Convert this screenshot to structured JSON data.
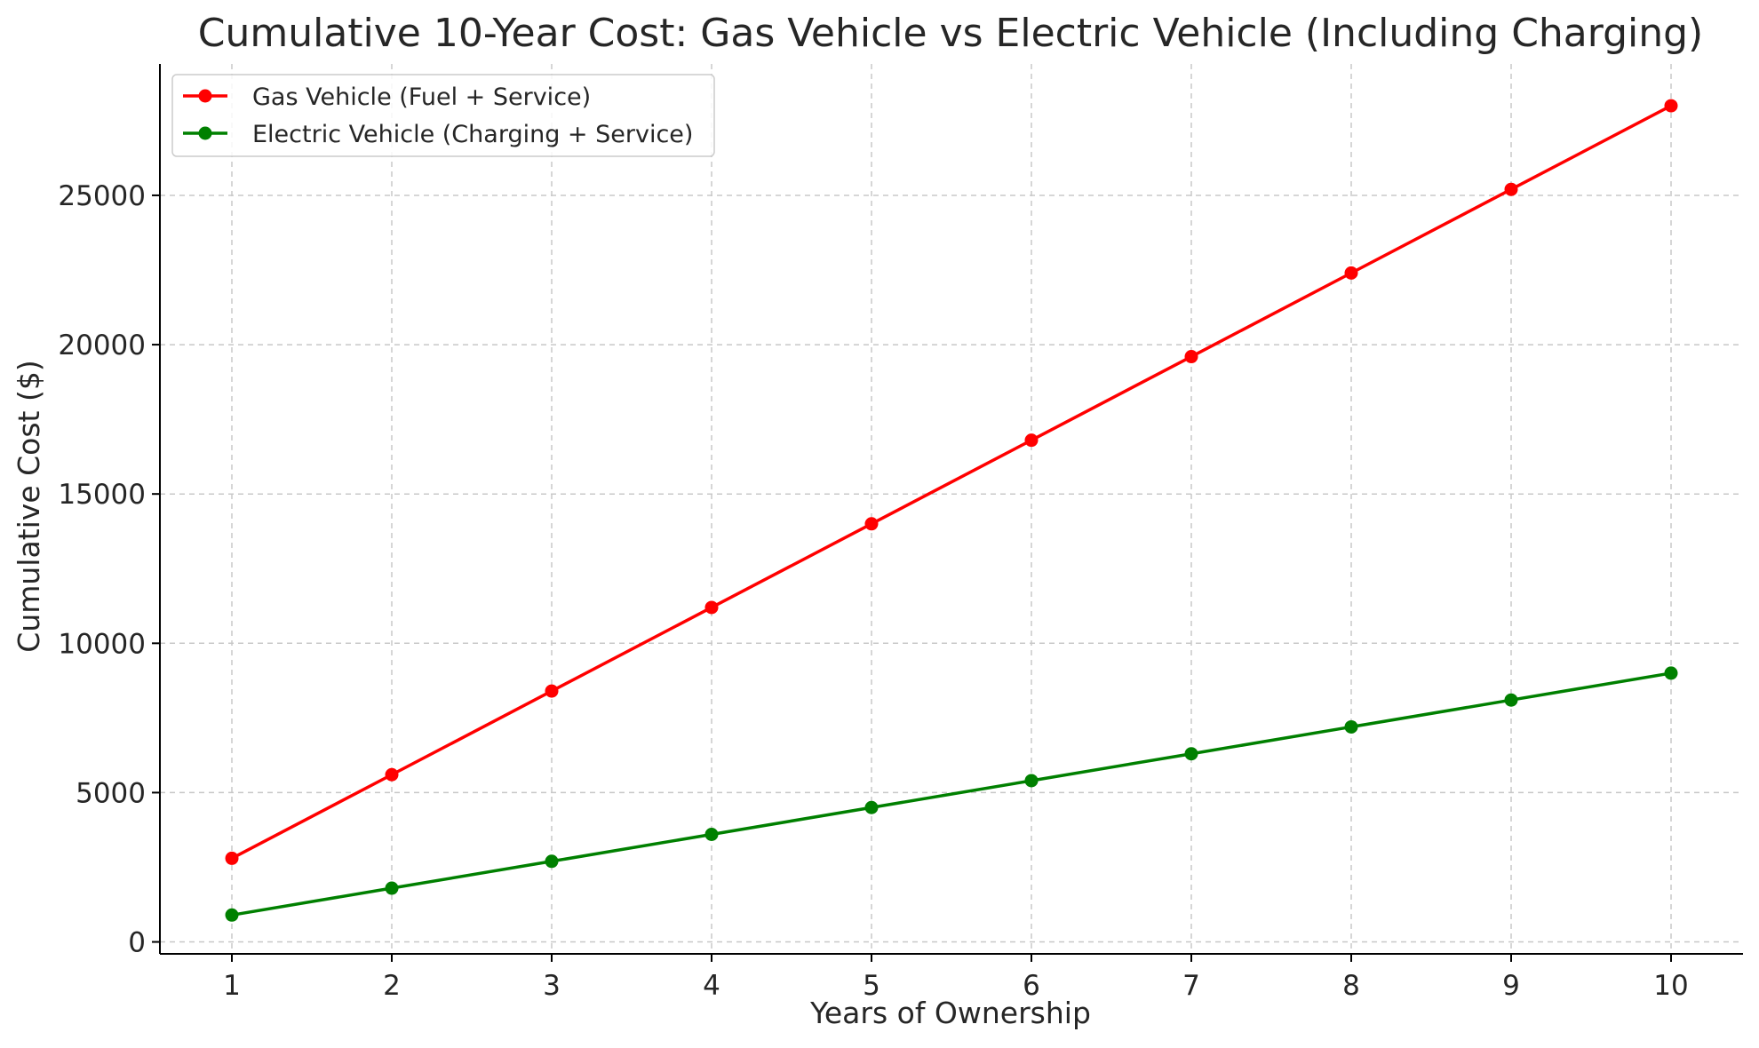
{
  "chart_data": {
    "type": "line",
    "title": "Cumulative 10-Year Cost: Gas Vehicle vs Electric Vehicle (Including Charging)",
    "xlabel": "Years of Ownership",
    "ylabel": "Cumulative Cost ($)",
    "x": [
      1,
      2,
      3,
      4,
      5,
      6,
      7,
      8,
      9,
      10
    ],
    "x_ticks": [
      "1",
      "2",
      "3",
      "4",
      "5",
      "6",
      "7",
      "8",
      "9",
      "10"
    ],
    "y_ticks": [
      0,
      5000,
      10000,
      15000,
      20000,
      25000
    ],
    "xlim": [
      0.55,
      10.45
    ],
    "ylim": [
      -400,
      29400
    ],
    "grid": true,
    "legend_position": "upper-left",
    "series": [
      {
        "name": "Gas Vehicle (Fuel + Service)",
        "color": "#ff0000",
        "marker": "circle",
        "values": [
          2800,
          5600,
          8400,
          11200,
          14000,
          16800,
          19600,
          22400,
          25200,
          28000
        ]
      },
      {
        "name": "Electric Vehicle (Charging + Service)",
        "color": "#008000",
        "marker": "circle",
        "values": [
          900,
          1800,
          2700,
          3600,
          4500,
          5400,
          6300,
          7200,
          8100,
          9000
        ]
      }
    ]
  }
}
